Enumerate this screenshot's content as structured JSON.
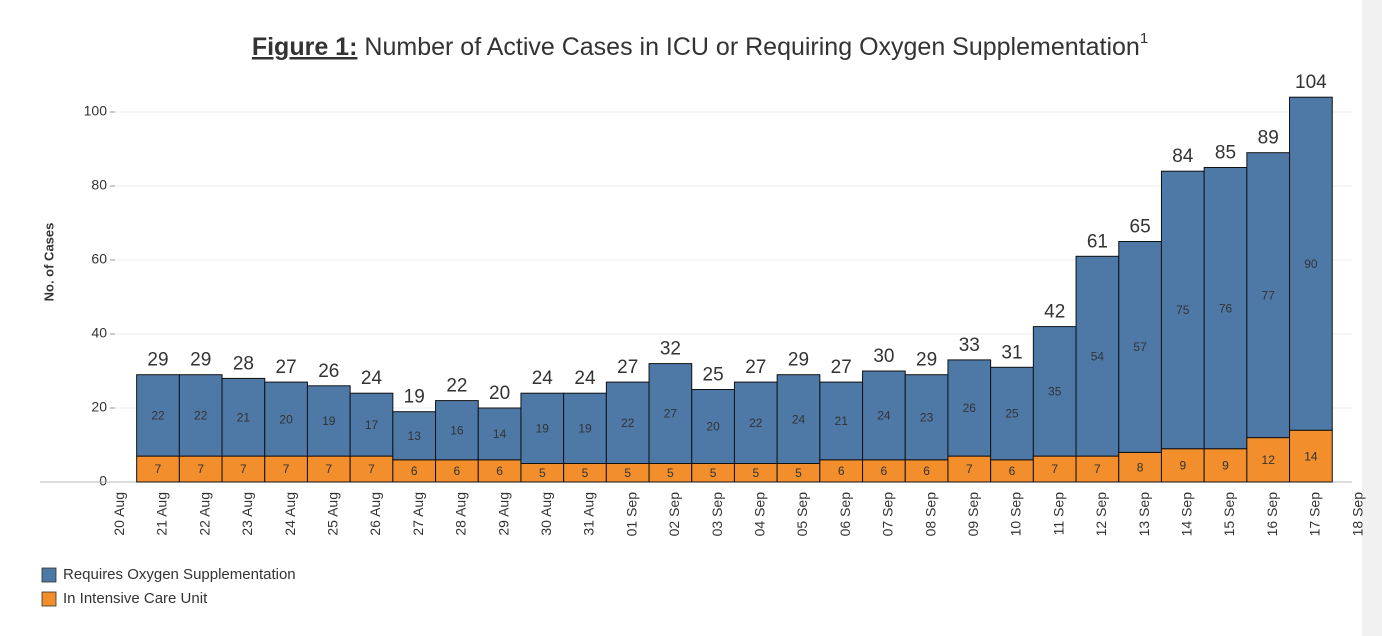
{
  "chart_data": {
    "type": "stacked_bar",
    "title_label": "Figure 1:",
    "title": "Number of Active Cases in ICU or Requiring Oxygen Supplementation",
    "title_note": "1",
    "ylabel": "No. of Cases",
    "categories": [
      "20 Aug",
      "21 Aug",
      "22 Aug",
      "23 Aug",
      "24 Aug",
      "25 Aug",
      "26 Aug",
      "27 Aug",
      "28 Aug",
      "29 Aug",
      "30 Aug",
      "31 Aug",
      "01 Sep",
      "02 Sep",
      "03 Sep",
      "04 Sep",
      "05 Sep",
      "06 Sep",
      "07 Sep",
      "08 Sep",
      "09 Sep",
      "10 Sep",
      "11 Sep",
      "12 Sep",
      "13 Sep",
      "14 Sep",
      "15 Sep",
      "16 Sep",
      "17 Sep",
      "18 Sep"
    ],
    "series": [
      {
        "name": "In Intensive Care Unit",
        "color": "#f28e2b",
        "values": [
          null,
          7,
          7,
          7,
          7,
          7,
          7,
          6,
          6,
          6,
          5,
          5,
          5,
          5,
          5,
          5,
          5,
          6,
          6,
          6,
          7,
          6,
          7,
          7,
          8,
          9,
          9,
          12,
          14,
          null
        ]
      },
      {
        "name": "Requires Oxygen Supplementation",
        "color": "#4e79a7",
        "values": [
          null,
          22,
          22,
          21,
          20,
          19,
          17,
          13,
          16,
          14,
          19,
          19,
          22,
          27,
          20,
          22,
          24,
          21,
          24,
          23,
          26,
          25,
          35,
          54,
          57,
          75,
          76,
          77,
          90,
          null
        ]
      }
    ],
    "totals": [
      null,
      29,
      29,
      28,
      27,
      26,
      24,
      19,
      22,
      20,
      24,
      24,
      27,
      32,
      25,
      27,
      29,
      27,
      30,
      29,
      33,
      31,
      42,
      61,
      65,
      84,
      85,
      89,
      104,
      null
    ],
    "legend_order": [
      1,
      0
    ],
    "ylim": [
      0,
      110
    ],
    "yticks": [
      0,
      20,
      40,
      60,
      80,
      100
    ],
    "grid": true
  }
}
